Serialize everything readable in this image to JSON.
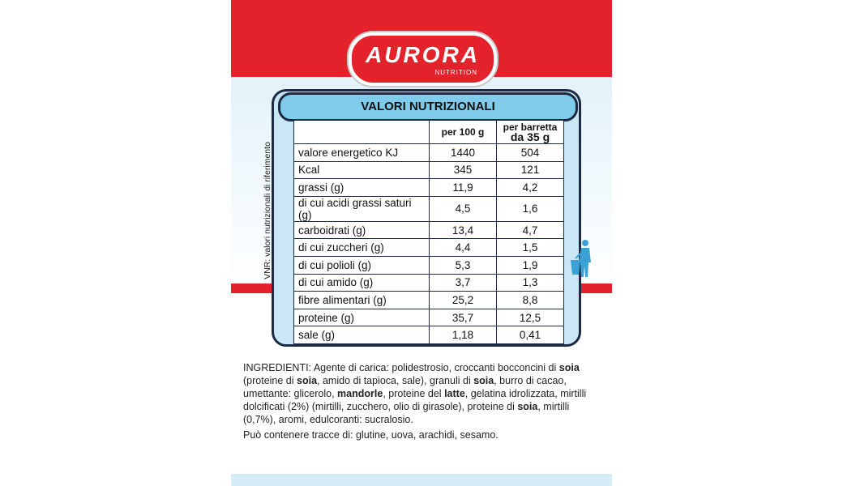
{
  "logo": {
    "brand": "AURORA",
    "tagline": "NUTRITION"
  },
  "table": {
    "title": "VALORI NUTRIZIONALI",
    "header": {
      "per_100g": "per 100 g",
      "per_serving": [
        "per barretta",
        "da 35 g"
      ]
    },
    "rows": [
      [
        "valore energetico KJ",
        "1440",
        "504"
      ],
      [
        "Kcal",
        "345",
        "121"
      ],
      [
        "grassi (g)",
        "11,9",
        "4,2"
      ],
      [
        "di cui acidi grassi saturi (g)",
        "4,5",
        "1,6"
      ],
      [
        "carboidrati (g)",
        "13,4",
        "4,7"
      ],
      [
        "di cui zuccheri (g)",
        "4,4",
        "1,5"
      ],
      [
        "di cui polioli (g)",
        "5,3",
        "1,9"
      ],
      [
        "di cui amido (g)",
        "3,7",
        "1,3"
      ],
      [
        "fibre alimentari (g)",
        "25,2",
        "8,8"
      ],
      [
        "proteine (g)",
        "35,7",
        "12,5"
      ],
      [
        "sale (g)",
        "1,18",
        "0,41"
      ]
    ],
    "side_note": "VNR: valori nutrizionali di riferimento"
  },
  "ingredients": [
    {
      "text": "INGREDIENTI: Agente di carica: polidestrosio, croccanti bocconcini di ",
      "bold": false
    },
    {
      "text": "soia",
      "bold": true
    },
    {
      "text": " (proteine di ",
      "bold": false
    },
    {
      "text": "soia",
      "bold": true
    },
    {
      "text": ", amido di tapioca, sale), granuli di ",
      "bold": false
    },
    {
      "text": "soia",
      "bold": true
    },
    {
      "text": ", burro di cacao, umettante: glicerolo, ",
      "bold": false
    },
    {
      "text": "mandorle",
      "bold": true
    },
    {
      "text": ", proteine del ",
      "bold": false
    },
    {
      "text": "latte",
      "bold": true
    },
    {
      "text": ", gelatina idrolizzata, mirtilli dolcificati (2%) (mirtilli, zucchero, olio di girasole), proteine di ",
      "bold": false
    },
    {
      "text": "soia",
      "bold": true
    },
    {
      "text": ", mirtilli (0,7%), aromi, edulcoranti: sucralosio.",
      "bold": false
    }
  ],
  "allergens": "Può contenere tracce di: glutine, uova, arachidi, sesamo."
}
